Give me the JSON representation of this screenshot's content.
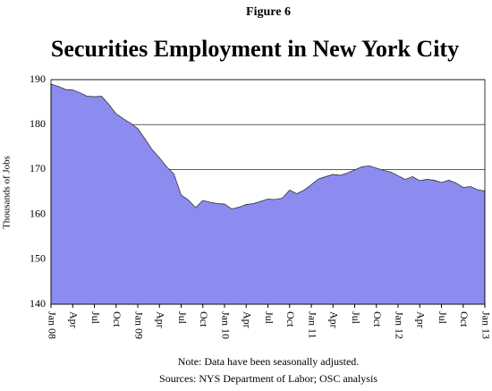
{
  "chart_data": {
    "type": "area",
    "supertitle": "Figure 6",
    "title": "Securities Employment in New York City",
    "y_label": "Thousands of Jobs",
    "notes": [
      "Note: Data have been seasonally adjusted.",
      "Sources: NYS Department of Labor; OSC analysis"
    ],
    "categories": [
      "Jan 08",
      null,
      null,
      "Apr",
      null,
      null,
      "Jul",
      null,
      null,
      "Oct",
      null,
      null,
      "Jan 09",
      null,
      null,
      "Apr",
      null,
      null,
      "Jul",
      null,
      null,
      "Oct",
      null,
      null,
      "Jan 10",
      null,
      null,
      "Apr",
      null,
      null,
      "Jul",
      null,
      null,
      "Oct",
      null,
      null,
      "Jan 11",
      null,
      null,
      "Apr",
      null,
      null,
      "Jul",
      null,
      null,
      "Oct",
      null,
      null,
      "Jan 12",
      null,
      null,
      "Apr",
      null,
      null,
      "Jul",
      null,
      null,
      "Oct",
      null,
      null,
      "Jan 13"
    ],
    "series": [
      {
        "name": "Securities Employment",
        "color": "#8c8cf0",
        "values": [
          189.0,
          188.5,
          187.8,
          187.7,
          187.1,
          186.3,
          186.2,
          186.3,
          184.5,
          182.4,
          181.3,
          180.3,
          179.1,
          176.8,
          174.4,
          172.6,
          170.6,
          169.0,
          164.3,
          163.2,
          161.5,
          163.1,
          162.7,
          162.4,
          162.3,
          161.2,
          161.6,
          162.2,
          162.4,
          162.9,
          163.4,
          163.3,
          163.6,
          165.4,
          164.6,
          165.4,
          166.6,
          167.9,
          168.4,
          168.9,
          168.7,
          169.2,
          169.9,
          170.6,
          170.8,
          170.3,
          169.8,
          169.4,
          168.6,
          167.8,
          168.4,
          167.5,
          167.8,
          167.6,
          167.1,
          167.6,
          167.0,
          166.0,
          166.2,
          165.5,
          165.2
        ]
      }
    ],
    "ylim": [
      140,
      190
    ],
    "yticks": [
      140,
      150,
      160,
      170,
      180,
      190
    ],
    "grid": true
  }
}
